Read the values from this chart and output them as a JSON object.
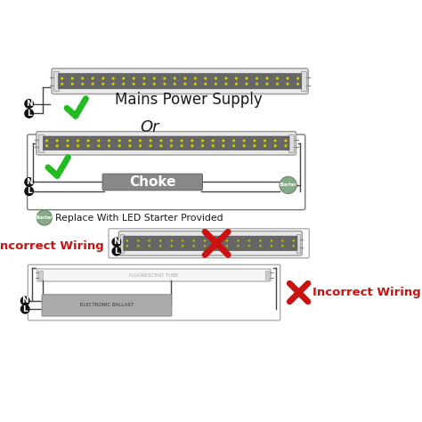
{
  "bg_color": "#ffffff",
  "tube_gray": "#888888",
  "tube_outer": "#e0e0e0",
  "tube_inner_dark": "#666666",
  "led_color": "#d8d800",
  "led_border": "#999900",
  "green_check_color": "#22bb22",
  "red_x_color": "#cc1111",
  "choke_color": "#888888",
  "choke_text_color": "#ffffff",
  "starter_color": "#88aa88",
  "starter_text_color": "#ffffff",
  "wire_color": "#444444",
  "nl_bg": "#111111",
  "nl_text": "#ffffff",
  "incorrect_text_color": "#cc1111",
  "ballast_color": "#aaaaaa",
  "title_text": "Mains Power Supply",
  "or_text": "Or",
  "choke_text": "Choke",
  "starter_text": "Starter",
  "replace_text": "Replace With LED Starter Provided",
  "incorrect_wiring": "Incorrect Wiring",
  "fluorescent_tube_text": "FLUORESCENT TUBE",
  "electronic_ballast_text": "ELECTRONIC BALLAST"
}
